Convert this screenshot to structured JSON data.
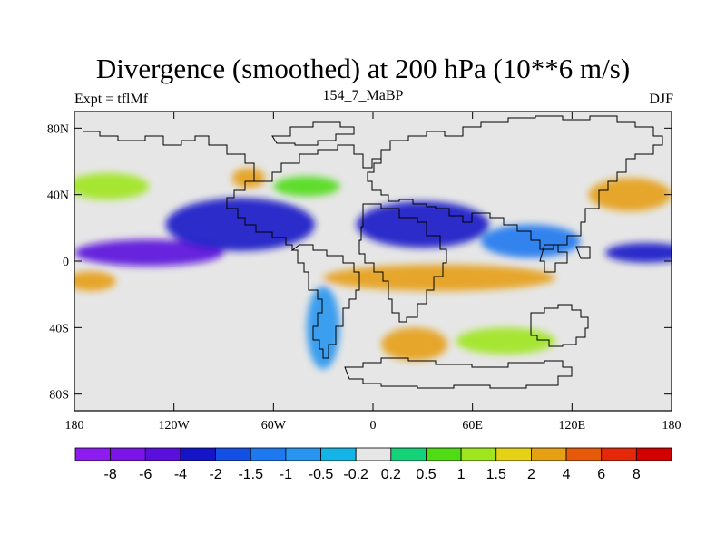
{
  "chart_data": {
    "type": "heatmap",
    "title": "Divergence (smoothed) at 200 hPa (10**6 m/s)",
    "left_label": "Expt = tflMf",
    "center_label": "154_7_MaBP",
    "right_label": "DJF",
    "x_axis": {
      "range": [
        -180,
        180
      ],
      "ticks": [
        -180,
        -120,
        -60,
        0,
        60,
        120,
        180
      ],
      "tick_labels": [
        "180",
        "120W",
        "60W",
        "0",
        "60E",
        "120E",
        "180"
      ]
    },
    "y_axis": {
      "range": [
        -90,
        90
      ],
      "ticks": [
        80,
        40,
        0,
        -40,
        -80
      ],
      "tick_labels": [
        "80N",
        "40N",
        "0",
        "40S",
        "80S"
      ]
    },
    "colorbar": {
      "levels": [
        "-8",
        "-6",
        "-4",
        "-2",
        "-1.5",
        "-1",
        "-0.5",
        "-0.2",
        "0.2",
        "0.5",
        "1",
        "1.5",
        "2",
        "4",
        "6",
        "8"
      ],
      "colors": [
        "#8c1cf0",
        "#7a14e8",
        "#5a10dc",
        "#1414c8",
        "#1450e6",
        "#1e78f0",
        "#2896f0",
        "#14b4e6",
        "#e6e6e6",
        "#14d278",
        "#50dc14",
        "#a0e61e",
        "#e6d214",
        "#e6a014",
        "#e65a0a",
        "#e6280a",
        "#d20000"
      ]
    },
    "fields": [
      {
        "lon": -135,
        "lat": 5,
        "value": -5,
        "rx": 45,
        "ry": 8
      },
      {
        "lon": 165,
        "lat": 5,
        "value": -4,
        "rx": 25,
        "ry": 6
      },
      {
        "lon": -80,
        "lat": 22,
        "value": -3,
        "rx": 45,
        "ry": 16
      },
      {
        "lon": 30,
        "lat": 22,
        "value": -3,
        "rx": 40,
        "ry": 14
      },
      {
        "lon": 95,
        "lat": 12,
        "value": -1.5,
        "rx": 30,
        "ry": 10
      },
      {
        "lon": -40,
        "lat": 45,
        "value": 0.6,
        "rx": 20,
        "ry": 6
      },
      {
        "lon": -75,
        "lat": 50,
        "value": 2,
        "rx": 10,
        "ry": 6
      },
      {
        "lon": 155,
        "lat": 40,
        "value": 2,
        "rx": 25,
        "ry": 10
      },
      {
        "lon": -160,
        "lat": 45,
        "value": 1,
        "rx": 25,
        "ry": 8
      },
      {
        "lon": 40,
        "lat": -10,
        "value": 3,
        "rx": 70,
        "ry": 8
      },
      {
        "lon": -170,
        "lat": -12,
        "value": 2,
        "rx": 15,
        "ry": 6
      },
      {
        "lon": 25,
        "lat": -50,
        "value": 2,
        "rx": 20,
        "ry": 10
      },
      {
        "lon": 80,
        "lat": -48,
        "value": 1,
        "rx": 30,
        "ry": 8
      },
      {
        "lon": -30,
        "lat": -40,
        "value": -1,
        "rx": 10,
        "ry": 25
      }
    ]
  }
}
